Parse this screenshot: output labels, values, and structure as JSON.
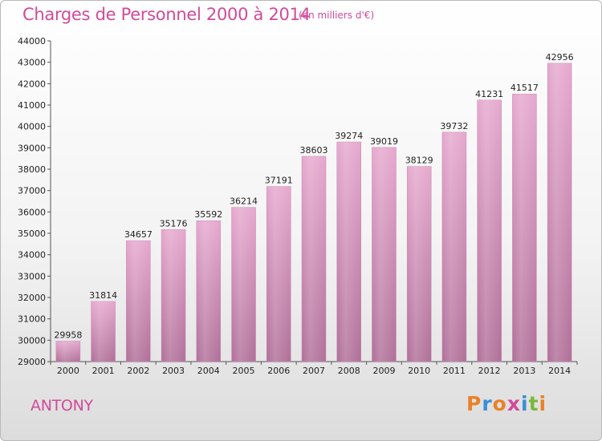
{
  "header": {
    "title": "Charges de Personnel 2000 à 2014",
    "subtitle": "(en milliers d'€)"
  },
  "footer": {
    "city": "ANTONY",
    "logo_text": "Proxiti"
  },
  "colors": {
    "title": "#d24a99",
    "bar_top": "#e6a8ce",
    "bar_bottom": "#b06f98",
    "logo": [
      "#e8822a",
      "#3a8fd6",
      "#e8822a",
      "#d24a99",
      "#3a8fd6",
      "#7ab83b",
      "#e8822a"
    ]
  },
  "chart_data": {
    "type": "bar",
    "title": "Charges de Personnel 2000 à 2014",
    "subtitle": "(en milliers d'€)",
    "categories": [
      "2000",
      "2001",
      "2002",
      "2003",
      "2004",
      "2005",
      "2006",
      "2007",
      "2008",
      "2009",
      "2010",
      "2011",
      "2012",
      "2013",
      "2014"
    ],
    "values": [
      29958,
      31814,
      34657,
      35176,
      35592,
      36214,
      37191,
      38603,
      39274,
      39019,
      38129,
      39732,
      41231,
      41517,
      42956
    ],
    "ylim": [
      29000,
      44000
    ],
    "yticks": [
      29000,
      30000,
      31000,
      32000,
      33000,
      34000,
      35000,
      36000,
      37000,
      38000,
      39000,
      40000,
      41000,
      42000,
      43000,
      44000
    ],
    "grid": false,
    "xlabel": "",
    "ylabel": ""
  }
}
